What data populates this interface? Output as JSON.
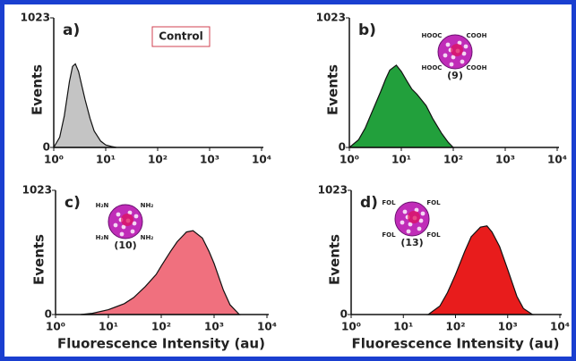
{
  "chart_data": [
    {
      "type": "area",
      "label": "a)",
      "box_label": "Control",
      "ylabel": "Events",
      "log_x": true,
      "xlim": [
        1,
        10000
      ],
      "ylim": [
        0,
        1023
      ],
      "xticks": [
        {
          "value": 1,
          "label": "10⁰"
        },
        {
          "value": 10,
          "label": "10¹"
        },
        {
          "value": 100,
          "label": "10²"
        },
        {
          "value": 1000,
          "label": "10³"
        },
        {
          "value": 10000,
          "label": "10⁴"
        }
      ],
      "yticks": [
        0,
        1023
      ],
      "x": [
        1,
        1.3,
        1.6,
        2,
        2.3,
        2.6,
        3,
        3.5,
        4,
        5,
        6,
        8,
        10,
        13,
        16
      ],
      "series": [
        {
          "color": "#c4c4c4",
          "values": [
            0,
            80,
            250,
            520,
            640,
            660,
            600,
            480,
            380,
            230,
            130,
            50,
            20,
            8,
            0
          ]
        }
      ]
    },
    {
      "type": "area",
      "label": "b)",
      "ylabel": "Events",
      "log_x": true,
      "particle": {
        "label": "(9)",
        "groups": [
          "HOOC",
          "COOH",
          "HOOC",
          "COOH"
        ]
      },
      "xlim": [
        1,
        10000
      ],
      "ylim": [
        0,
        1023
      ],
      "xticks": [
        {
          "value": 1,
          "label": "10⁰"
        },
        {
          "value": 10,
          "label": "10¹"
        },
        {
          "value": 100,
          "label": "10²"
        },
        {
          "value": 1000,
          "label": "10³"
        },
        {
          "value": 10000,
          "label": "10⁴"
        }
      ],
      "yticks": [
        0,
        1023
      ],
      "x": [
        1,
        1.5,
        2,
        3,
        4,
        5,
        6,
        8,
        10,
        13,
        16,
        20,
        30,
        40,
        60,
        80,
        100
      ],
      "series": [
        {
          "color": "#22a03c",
          "values": [
            0,
            60,
            150,
            320,
            440,
            540,
            610,
            650,
            600,
            520,
            460,
            420,
            330,
            230,
            110,
            40,
            0
          ]
        }
      ]
    },
    {
      "type": "area",
      "label": "c)",
      "ylabel": "Events",
      "xlabel": "Fluorescence Intensity (au)",
      "log_x": true,
      "particle": {
        "label": "(10)",
        "groups": [
          "H₂N",
          "NH₂",
          "H₂N",
          "NH₂"
        ]
      },
      "xlim": [
        1,
        10000
      ],
      "ylim": [
        0,
        1023
      ],
      "xticks": [
        {
          "value": 1,
          "label": "10⁰"
        },
        {
          "value": 10,
          "label": "10¹"
        },
        {
          "value": 100,
          "label": "10²"
        },
        {
          "value": 1000,
          "label": "10³"
        },
        {
          "value": 10000,
          "label": "10⁴"
        }
      ],
      "yticks": [
        0,
        1023
      ],
      "x": [
        3,
        5,
        10,
        20,
        30,
        50,
        80,
        100,
        150,
        200,
        300,
        400,
        600,
        800,
        1000,
        1500,
        2000,
        3000
      ],
      "series": [
        {
          "color": "#f0707e",
          "values": [
            0,
            10,
            40,
            90,
            140,
            230,
            330,
            400,
            520,
            600,
            680,
            690,
            630,
            520,
            420,
            200,
            80,
            0
          ]
        }
      ]
    },
    {
      "type": "area",
      "label": "d)",
      "ylabel": "Events",
      "xlabel": "Fluorescence Intensity (au)",
      "log_x": true,
      "particle": {
        "label": "(13)",
        "groups": [
          "FOL",
          "FOL",
          "FOL",
          "FOL"
        ]
      },
      "xlim": [
        1,
        10000
      ],
      "ylim": [
        0,
        1023
      ],
      "xticks": [
        {
          "value": 1,
          "label": "10⁰"
        },
        {
          "value": 10,
          "label": "10¹"
        },
        {
          "value": 100,
          "label": "10²"
        },
        {
          "value": 1000,
          "label": "10³"
        },
        {
          "value": 10000,
          "label": "10⁴"
        }
      ],
      "yticks": [
        0,
        1023
      ],
      "x": [
        30,
        50,
        70,
        100,
        150,
        200,
        300,
        400,
        500,
        700,
        1000,
        1500,
        2000,
        3000
      ],
      "series": [
        {
          "color": "#e81c1c",
          "values": [
            0,
            70,
            180,
            330,
            520,
            640,
            720,
            730,
            680,
            560,
            370,
            150,
            50,
            0
          ]
        }
      ]
    }
  ]
}
